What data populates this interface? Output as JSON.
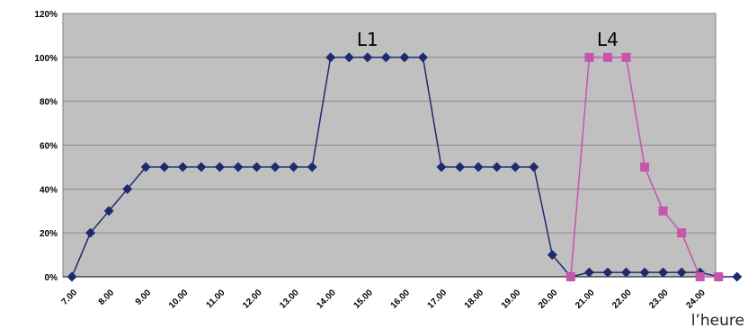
{
  "chart_data": {
    "type": "line",
    "xlabel": "l’heure",
    "ylabel": "",
    "ylim": [
      0,
      120
    ],
    "yticks": [
      "0%",
      "20%",
      "40%",
      "60%",
      "80%",
      "100%",
      "120%"
    ],
    "xticks": [
      "7.00",
      "8.00",
      "9.00",
      "10.00",
      "11.00",
      "12.00",
      "13.00",
      "14.00",
      "15.00",
      "16.00",
      "17.00",
      "18.00",
      "19.00",
      "20.00",
      "21.00",
      "22.00",
      "23.00",
      "24.00"
    ],
    "xlim": [
      7,
      24.7
    ],
    "grid": "horizontal",
    "legend": "none",
    "series": [
      {
        "name": "L1",
        "color": "#1f2a6e",
        "marker": "diamond",
        "points": [
          [
            7.0,
            0
          ],
          [
            7.5,
            20
          ],
          [
            8.0,
            30
          ],
          [
            8.5,
            40
          ],
          [
            9.0,
            50
          ],
          [
            9.5,
            50
          ],
          [
            10.0,
            50
          ],
          [
            10.5,
            50
          ],
          [
            11.0,
            50
          ],
          [
            11.5,
            50
          ],
          [
            12.0,
            50
          ],
          [
            12.5,
            50
          ],
          [
            13.0,
            50
          ],
          [
            13.5,
            50
          ],
          [
            14.0,
            100
          ],
          [
            14.5,
            100
          ],
          [
            15.0,
            100
          ],
          [
            15.5,
            100
          ],
          [
            16.0,
            100
          ],
          [
            16.5,
            100
          ],
          [
            17.0,
            50
          ],
          [
            17.5,
            50
          ],
          [
            18.0,
            50
          ],
          [
            18.5,
            50
          ],
          [
            19.0,
            50
          ],
          [
            19.5,
            50
          ],
          [
            20.0,
            10
          ],
          [
            20.5,
            0
          ],
          [
            21.0,
            2
          ],
          [
            21.5,
            2
          ],
          [
            22.0,
            2
          ],
          [
            22.5,
            2
          ],
          [
            23.0,
            2
          ],
          [
            23.5,
            2
          ],
          [
            24.0,
            2
          ],
          [
            24.5,
            0
          ],
          [
            25.0,
            0
          ]
        ]
      },
      {
        "name": "L4",
        "color": "#c655ad",
        "marker": "square",
        "points": [
          [
            20.5,
            0
          ],
          [
            21.0,
            100
          ],
          [
            21.5,
            100
          ],
          [
            22.0,
            100
          ],
          [
            22.5,
            50
          ],
          [
            23.0,
            30
          ],
          [
            23.5,
            20
          ],
          [
            24.0,
            0
          ],
          [
            24.5,
            0
          ]
        ]
      }
    ]
  }
}
